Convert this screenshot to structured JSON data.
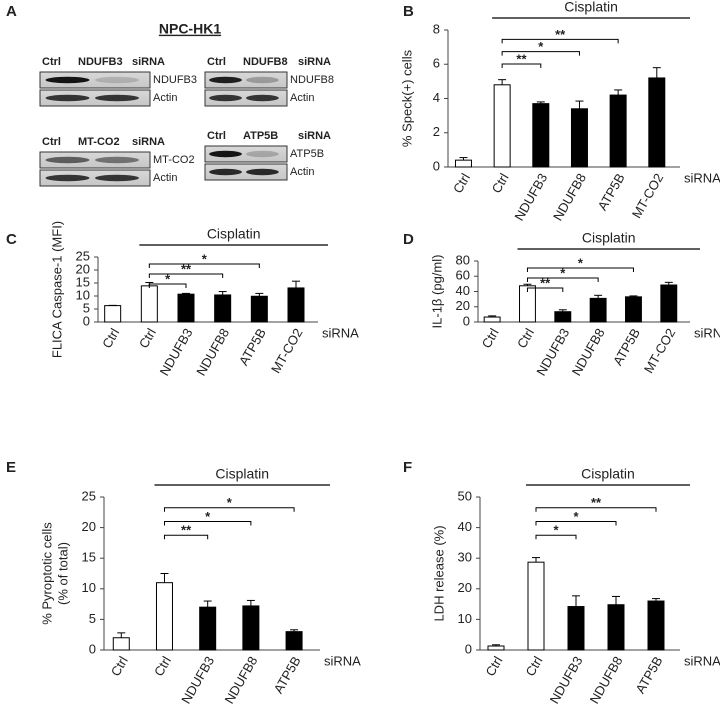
{
  "blots": {
    "panel_label": "A",
    "title": "NPC-HK1",
    "groups": [
      {
        "lanes": [
          "Ctrl",
          "NDUFB3"
        ],
        "sirna": "siRNA",
        "rows": [
          "NDUFB3",
          "Actin"
        ]
      },
      {
        "lanes": [
          "Ctrl",
          "NDUFB8"
        ],
        "sirna": "siRNA",
        "rows": [
          "NDUFB8",
          "Actin"
        ]
      },
      {
        "lanes": [
          "Ctrl",
          "MT-CO2"
        ],
        "sirna": "siRNA",
        "rows": [
          "MT-CO2",
          "Actin"
        ]
      },
      {
        "lanes": [
          "Ctrl",
          "ATP5B"
        ],
        "sirna": "siRNA",
        "rows": [
          "ATP5B",
          "Actin"
        ]
      }
    ]
  },
  "chart_data": [
    {
      "type": "bar",
      "panel_label": "B",
      "title": "Cisplatin",
      "y_label": [
        "% Speck(+) cells"
      ],
      "x_group_label": "siRNA",
      "categories": [
        "Ctrl",
        "Ctrl",
        "NDUFB3",
        "NDUFB8",
        "ATP5B",
        "MT-CO2"
      ],
      "values": [
        0.4,
        4.8,
        3.7,
        3.4,
        4.2,
        5.2
      ],
      "errors": [
        0.15,
        0.3,
        0.1,
        0.45,
        0.3,
        0.6
      ],
      "colors": [
        "#ffffff",
        "#ffffff",
        "#000000",
        "#000000",
        "#000000",
        "#000000"
      ],
      "ylim": [
        0,
        8
      ],
      "yticks": [
        0,
        2,
        4,
        6,
        8
      ],
      "significance": [
        {
          "from": 1,
          "to": 2,
          "label": "**"
        },
        {
          "from": 1,
          "to": 3,
          "label": "*"
        },
        {
          "from": 1,
          "to": 4,
          "label": "**"
        }
      ]
    },
    {
      "type": "bar",
      "panel_label": "C",
      "title": "Cisplatin",
      "y_label": [
        "FLICA Caspase-1 (MFI)"
      ],
      "x_group_label": "siRNA",
      "categories": [
        "Ctrl",
        "Ctrl",
        "NDUFB3",
        "NDUFB8",
        "ATP5B",
        "MT-CO2"
      ],
      "values": [
        6.3,
        13.9,
        10.7,
        10.4,
        9.9,
        13.1
      ],
      "errors": [
        0.1,
        1.3,
        0.3,
        1.3,
        1.1,
        2.6
      ],
      "colors": [
        "#ffffff",
        "#ffffff",
        "#000000",
        "#000000",
        "#000000",
        "#000000"
      ],
      "ylim": [
        0,
        25
      ],
      "yticks": [
        0,
        5,
        10,
        15,
        20,
        25
      ],
      "significance": [
        {
          "from": 1,
          "to": 2,
          "label": "*"
        },
        {
          "from": 1,
          "to": 3,
          "label": "**"
        },
        {
          "from": 1,
          "to": 4,
          "label": "*"
        }
      ]
    },
    {
      "type": "bar",
      "panel_label": "D",
      "title": "Cisplatin",
      "y_label": [
        "IL-1β (pg/ml)"
      ],
      "x_group_label": "siRNA",
      "categories": [
        "Ctrl",
        "Ctrl",
        "NDUFB3",
        "NDUFB8",
        "ATP5B",
        "MT-CO2"
      ],
      "values": [
        6.5,
        47.5,
        13.5,
        31,
        33,
        48.5
      ],
      "errors": [
        1.5,
        2,
        2.5,
        4,
        1.2,
        3.5
      ],
      "colors": [
        "#ffffff",
        "#ffffff",
        "#000000",
        "#000000",
        "#000000",
        "#000000"
      ],
      "ylim": [
        0,
        80
      ],
      "yticks": [
        0,
        20,
        40,
        60,
        80
      ],
      "significance": [
        {
          "from": 1,
          "to": 2,
          "label": "**"
        },
        {
          "from": 1,
          "to": 3,
          "label": "*"
        },
        {
          "from": 1,
          "to": 4,
          "label": "*"
        }
      ]
    },
    {
      "type": "bar",
      "panel_label": "E",
      "title": "Cisplatin",
      "y_label": [
        "% Pyroptotic cells",
        "(% of total)"
      ],
      "x_group_label": "siRNA",
      "categories": [
        "Ctrl",
        "Ctrl",
        "NDUFB3",
        "NDUFB8",
        "ATP5B"
      ],
      "values": [
        2.0,
        11.0,
        7.0,
        7.2,
        3.0
      ],
      "errors": [
        0.8,
        1.5,
        1.0,
        0.9,
        0.3
      ],
      "colors": [
        "#ffffff",
        "#ffffff",
        "#000000",
        "#000000",
        "#000000"
      ],
      "ylim": [
        0,
        25
      ],
      "yticks": [
        0,
        5,
        10,
        15,
        20,
        25
      ],
      "significance": [
        {
          "from": 1,
          "to": 2,
          "label": "**"
        },
        {
          "from": 1,
          "to": 3,
          "label": "*"
        },
        {
          "from": 1,
          "to": 4,
          "label": "*"
        }
      ]
    },
    {
      "type": "bar",
      "panel_label": "F",
      "title": "Cisplatin",
      "y_label": [
        "LDH release (%)"
      ],
      "x_group_label": "siRNA",
      "categories": [
        "Ctrl",
        "Ctrl",
        "NDUFB3",
        "NDUFB8",
        "ATP5B"
      ],
      "values": [
        1.3,
        28.7,
        14.2,
        14.8,
        16.0
      ],
      "errors": [
        0.4,
        1.5,
        3.5,
        2.7,
        0.8
      ],
      "colors": [
        "#ffffff",
        "#ffffff",
        "#000000",
        "#000000",
        "#000000"
      ],
      "ylim": [
        0,
        50
      ],
      "yticks": [
        0,
        10,
        20,
        30,
        40,
        50
      ],
      "significance": [
        {
          "from": 1,
          "to": 2,
          "label": "*"
        },
        {
          "from": 1,
          "to": 3,
          "label": "*"
        },
        {
          "from": 1,
          "to": 4,
          "label": "**"
        }
      ]
    }
  ]
}
